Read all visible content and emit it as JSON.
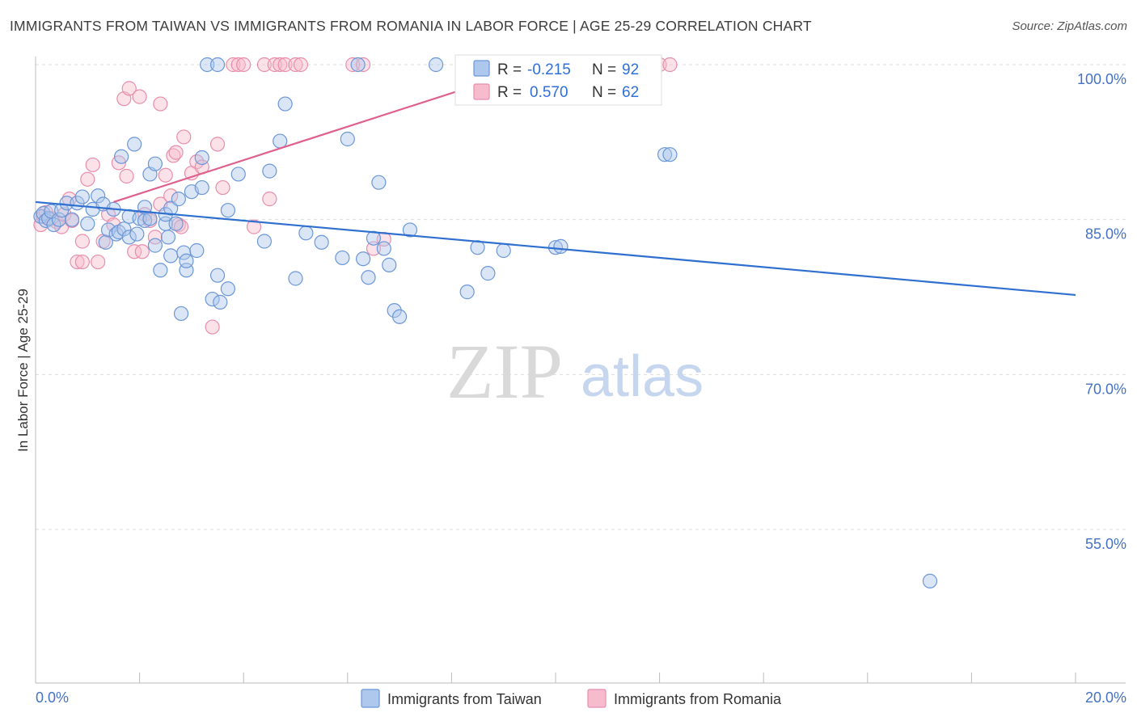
{
  "chart_data": {
    "type": "scatter",
    "title": "IMMIGRANTS FROM TAIWAN VS IMMIGRANTS FROM ROMANIA IN LABOR FORCE | AGE 25-29 CORRELATION CHART",
    "source": "Source: ZipAtlas.com",
    "ylabel": "In Labor Force | Age 25-29",
    "xlim": [
      0,
      20
    ],
    "ylim": [
      41,
      101.5
    ],
    "x_tick_labels": [
      "0.0%",
      "20.0%"
    ],
    "y_ticks": [
      55,
      70,
      85,
      100
    ],
    "y_tick_labels": [
      "55.0%",
      "70.0%",
      "85.0%",
      "100.0%"
    ],
    "grid": true,
    "legend_position": "bottom",
    "watermark": {
      "zip": "ZIP",
      "atlas": "atlas"
    },
    "colors": {
      "taiwan_fill": "#aec7ec",
      "taiwan_stroke": "#6b97d8",
      "taiwan_line": "#2f6fd0",
      "romania_fill": "#f6bccd",
      "romania_stroke": "#e88eab",
      "romania_line": "#e0608c",
      "grid": "#dddddd",
      "axis": "#bbbbbb"
    },
    "stats": {
      "r_label": "R =",
      "n_label": "N =",
      "rows": [
        {
          "r": "-0.215",
          "n": "92"
        },
        {
          "r": "0.570",
          "n": "62"
        }
      ]
    },
    "series": [
      {
        "name": "Immigrants from Taiwan",
        "trend": [
          [
            0,
            86.7
          ],
          [
            20,
            77.7
          ]
        ],
        "points": [
          [
            0.1,
            85.3
          ],
          [
            0.15,
            85.6
          ],
          [
            0.2,
            84.9
          ],
          [
            0.25,
            85.1
          ],
          [
            0.3,
            85.8
          ],
          [
            0.35,
            84.5
          ],
          [
            0.45,
            85.0
          ],
          [
            0.5,
            85.9
          ],
          [
            0.6,
            86.6
          ],
          [
            0.7,
            85.0
          ],
          [
            0.8,
            86.6
          ],
          [
            0.9,
            87.2
          ],
          [
            1.0,
            84.6
          ],
          [
            1.1,
            86.0
          ],
          [
            1.2,
            87.3
          ],
          [
            1.3,
            86.5
          ],
          [
            1.35,
            82.8
          ],
          [
            1.4,
            84.0
          ],
          [
            1.5,
            86.0
          ],
          [
            1.55,
            83.6
          ],
          [
            1.6,
            83.8
          ],
          [
            1.65,
            91.1
          ],
          [
            1.7,
            84.1
          ],
          [
            1.8,
            83.3
          ],
          [
            1.8,
            85.3
          ],
          [
            1.9,
            92.3
          ],
          [
            1.95,
            83.6
          ],
          [
            2.0,
            85.1
          ],
          [
            2.1,
            86.2
          ],
          [
            2.1,
            84.9
          ],
          [
            2.2,
            89.4
          ],
          [
            2.2,
            85.1
          ],
          [
            2.3,
            82.5
          ],
          [
            2.3,
            90.4
          ],
          [
            2.4,
            80.1
          ],
          [
            2.5,
            84.6
          ],
          [
            2.5,
            85.5
          ],
          [
            2.55,
            83.3
          ],
          [
            2.6,
            86.1
          ],
          [
            2.6,
            81.5
          ],
          [
            2.7,
            84.6
          ],
          [
            2.75,
            87.0
          ],
          [
            2.8,
            75.9
          ],
          [
            2.85,
            81.8
          ],
          [
            2.9,
            80.1
          ],
          [
            2.9,
            81.0
          ],
          [
            3.0,
            87.7
          ],
          [
            3.1,
            82.0
          ],
          [
            3.2,
            91.0
          ],
          [
            3.2,
            88.1
          ],
          [
            3.3,
            100.0
          ],
          [
            3.4,
            77.3
          ],
          [
            3.5,
            79.6
          ],
          [
            3.5,
            100.0
          ],
          [
            3.55,
            77.0
          ],
          [
            3.7,
            78.3
          ],
          [
            3.7,
            85.9
          ],
          [
            3.9,
            89.4
          ],
          [
            4.4,
            82.9
          ],
          [
            4.5,
            89.7
          ],
          [
            4.7,
            92.6
          ],
          [
            4.8,
            96.2
          ],
          [
            5.0,
            79.3
          ],
          [
            5.2,
            83.7
          ],
          [
            5.5,
            82.8
          ],
          [
            5.9,
            81.3
          ],
          [
            6.0,
            92.8
          ],
          [
            6.2,
            100.0
          ],
          [
            6.3,
            81.2
          ],
          [
            6.4,
            79.4
          ],
          [
            6.5,
            83.2
          ],
          [
            6.6,
            88.6
          ],
          [
            6.7,
            82.2
          ],
          [
            6.8,
            80.6
          ],
          [
            6.9,
            76.2
          ],
          [
            7.0,
            75.6
          ],
          [
            7.2,
            84.0
          ],
          [
            7.7,
            100.0
          ],
          [
            8.3,
            78.0
          ],
          [
            8.5,
            82.3
          ],
          [
            8.7,
            79.8
          ],
          [
            9.0,
            82.0
          ],
          [
            10.0,
            82.3
          ],
          [
            10.1,
            82.4
          ],
          [
            12.1,
            91.3
          ],
          [
            12.2,
            91.3
          ],
          [
            17.2,
            50.0
          ]
        ]
      },
      {
        "name": "Immigrants from Romania",
        "trend": [
          [
            1.5,
            86.7
          ],
          [
            9.7,
            100.0
          ]
        ],
        "points": [
          [
            0.1,
            84.5
          ],
          [
            0.15,
            85.3
          ],
          [
            0.2,
            85.7
          ],
          [
            0.3,
            85.1
          ],
          [
            0.4,
            84.8
          ],
          [
            0.5,
            84.3
          ],
          [
            0.55,
            85.5
          ],
          [
            0.65,
            87.0
          ],
          [
            0.7,
            84.9
          ],
          [
            0.8,
            80.9
          ],
          [
            0.9,
            80.9
          ],
          [
            0.9,
            82.9
          ],
          [
            1.0,
            88.9
          ],
          [
            1.1,
            90.3
          ],
          [
            1.2,
            80.9
          ],
          [
            1.3,
            82.9
          ],
          [
            1.4,
            85.5
          ],
          [
            1.5,
            84.5
          ],
          [
            1.6,
            90.5
          ],
          [
            1.7,
            96.7
          ],
          [
            1.75,
            89.2
          ],
          [
            1.8,
            97.7
          ],
          [
            1.9,
            81.9
          ],
          [
            2.0,
            96.9
          ],
          [
            2.05,
            81.9
          ],
          [
            2.1,
            85.5
          ],
          [
            2.2,
            84.9
          ],
          [
            2.3,
            83.3
          ],
          [
            2.4,
            86.5
          ],
          [
            2.4,
            96.2
          ],
          [
            2.5,
            89.3
          ],
          [
            2.6,
            87.3
          ],
          [
            2.65,
            91.2
          ],
          [
            2.7,
            91.5
          ],
          [
            2.75,
            84.5
          ],
          [
            2.8,
            84.3
          ],
          [
            2.85,
            93.0
          ],
          [
            3.0,
            89.5
          ],
          [
            3.1,
            90.6
          ],
          [
            3.2,
            90.1
          ],
          [
            3.4,
            74.6
          ],
          [
            3.5,
            92.3
          ],
          [
            3.6,
            88.1
          ],
          [
            3.8,
            100.0
          ],
          [
            3.9,
            100.0
          ],
          [
            4.0,
            100.0
          ],
          [
            4.2,
            84.3
          ],
          [
            4.4,
            100.0
          ],
          [
            4.5,
            87.0
          ],
          [
            4.6,
            100.0
          ],
          [
            4.7,
            100.0
          ],
          [
            4.8,
            100.0
          ],
          [
            5.0,
            100.0
          ],
          [
            5.1,
            100.0
          ],
          [
            6.1,
            100.0
          ],
          [
            6.3,
            100.0
          ],
          [
            6.5,
            82.2
          ],
          [
            6.7,
            83.1
          ],
          [
            12.0,
            100.0
          ],
          [
            12.2,
            100.0
          ]
        ]
      }
    ]
  }
}
